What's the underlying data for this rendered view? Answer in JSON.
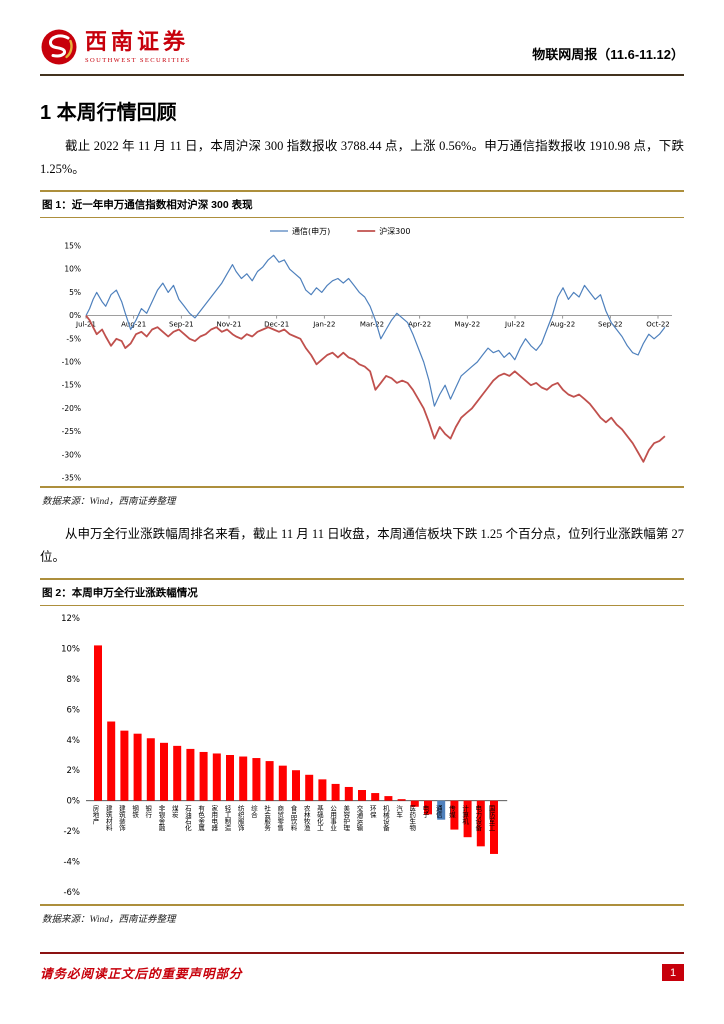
{
  "header": {
    "logo_icon": "southwest-securities-swirl-icon",
    "brand_cn": "西南证券",
    "brand_en": "SOUTHWEST SECURITIES",
    "report_title": "物联网周报（11.6-11.12）"
  },
  "section": {
    "heading": "1 本周行情回顾"
  },
  "paragraphs": {
    "p1": "截止 2022 年 11 月 11 日，本周沪深 300 指数报收 3788.44 点，上涨 0.56%。申万通信指数报收 1910.98 点，下跌 1.25%。",
    "p2": "从申万全行业涨跌幅周排名来看，截止 11 月 11 日收盘，本周通信板块下跌 1.25 个百分点，位列行业涨跌幅第 27 位。"
  },
  "figure1": {
    "title": "图 1：近一年申万通信指数相对沪深 300 表现",
    "source": "数据来源：Wind，西南证券整理"
  },
  "figure2": {
    "title": "图 2：本周申万全行业涨跌幅情况",
    "source": "数据来源：Wind，西南证券整理"
  },
  "footer": {
    "disclaimer": "请务必阅读正文后的重要声明部分",
    "page_number": "1"
  },
  "colors": {
    "brand_red": "#C7000B",
    "gold_rule": "#AD8F3C",
    "footer_rule": "#8B1212",
    "line_blue": "#4F81BD",
    "line_red": "#C0504D",
    "bar_red": "#FF0000",
    "bar_highlight_blue": "#4F81BD"
  },
  "chart_data": [
    {
      "type": "line",
      "title": "近一年申万通信指数相对沪深300表现",
      "legend_position": "top",
      "ylim": [
        -35,
        15
      ],
      "ytick_step": 5,
      "ytick_suffix": "%",
      "x_range": [
        0,
        16.4
      ],
      "x_ticks": [
        "Jul-21",
        "Aug-21",
        "Sep-21",
        "Nov-21",
        "Dec-21",
        "Jan-22",
        "Mar-22",
        "Apr-22",
        "May-22",
        "Jul-22",
        "Aug-22",
        "Sep-22",
        "Oct-22"
      ],
      "grid": false,
      "series": [
        {
          "name": "通信(申万)",
          "color": "#4F81BD",
          "width": 1.2,
          "points": [
            [
              0,
              0
            ],
            [
              0.1,
              1.5
            ],
            [
              0.2,
              3.5
            ],
            [
              0.3,
              5
            ],
            [
              0.45,
              3
            ],
            [
              0.55,
              2
            ],
            [
              0.7,
              4.5
            ],
            [
              0.85,
              5.5
            ],
            [
              1,
              3
            ],
            [
              1.1,
              0.5
            ],
            [
              1.25,
              -3
            ],
            [
              1.4,
              -1
            ],
            [
              1.55,
              1.5
            ],
            [
              1.7,
              0.5
            ],
            [
              1.85,
              3
            ],
            [
              2,
              5.5
            ],
            [
              2.15,
              7
            ],
            [
              2.3,
              5
            ],
            [
              2.45,
              6.5
            ],
            [
              2.6,
              3.5
            ],
            [
              2.75,
              2
            ],
            [
              2.9,
              0.5
            ],
            [
              3.05,
              -0.5
            ],
            [
              3.2,
              1
            ],
            [
              3.35,
              2.5
            ],
            [
              3.5,
              4
            ],
            [
              3.65,
              5.5
            ],
            [
              3.8,
              7
            ],
            [
              3.95,
              9
            ],
            [
              4.1,
              11
            ],
            [
              4.2,
              9.5
            ],
            [
              4.35,
              8
            ],
            [
              4.5,
              9
            ],
            [
              4.65,
              7.5
            ],
            [
              4.8,
              9.5
            ],
            [
              4.95,
              10.5
            ],
            [
              5.1,
              12
            ],
            [
              5.25,
              13
            ],
            [
              5.4,
              11.5
            ],
            [
              5.55,
              12
            ],
            [
              5.7,
              10
            ],
            [
              5.85,
              9
            ],
            [
              6,
              8
            ],
            [
              6.15,
              5.5
            ],
            [
              6.3,
              4.5
            ],
            [
              6.45,
              6
            ],
            [
              6.6,
              5
            ],
            [
              6.75,
              6.5
            ],
            [
              6.9,
              7.5
            ],
            [
              7.05,
              8
            ],
            [
              7.2,
              7
            ],
            [
              7.35,
              8
            ],
            [
              7.5,
              6.5
            ],
            [
              7.65,
              5
            ],
            [
              7.8,
              4
            ],
            [
              7.95,
              2
            ],
            [
              8.1,
              -1
            ],
            [
              8.25,
              -5
            ],
            [
              8.4,
              -3
            ],
            [
              8.55,
              -1
            ],
            [
              8.7,
              0.5
            ],
            [
              8.85,
              -0.5
            ],
            [
              9,
              -1.5
            ],
            [
              9.15,
              -4
            ],
            [
              9.3,
              -7
            ],
            [
              9.45,
              -10
            ],
            [
              9.6,
              -14
            ],
            [
              9.75,
              -19.5
            ],
            [
              9.9,
              -17
            ],
            [
              10.05,
              -15
            ],
            [
              10.2,
              -18
            ],
            [
              10.35,
              -15.5
            ],
            [
              10.5,
              -13
            ],
            [
              10.65,
              -12
            ],
            [
              10.8,
              -11
            ],
            [
              10.95,
              -10
            ],
            [
              11.1,
              -8.5
            ],
            [
              11.25,
              -7
            ],
            [
              11.4,
              -8
            ],
            [
              11.55,
              -7.5
            ],
            [
              11.7,
              -9
            ],
            [
              11.85,
              -8
            ],
            [
              12,
              -9.5
            ],
            [
              12.15,
              -7
            ],
            [
              12.3,
              -5
            ],
            [
              12.45,
              -6.5
            ],
            [
              12.6,
              -7.5
            ],
            [
              12.75,
              -6
            ],
            [
              12.9,
              -3
            ],
            [
              13.05,
              0
            ],
            [
              13.2,
              4
            ],
            [
              13.35,
              6
            ],
            [
              13.5,
              3.5
            ],
            [
              13.65,
              5
            ],
            [
              13.8,
              4
            ],
            [
              13.95,
              6.5
            ],
            [
              14.1,
              5
            ],
            [
              14.25,
              3.5
            ],
            [
              14.4,
              4.5
            ],
            [
              14.55,
              1
            ],
            [
              14.7,
              -1.5
            ],
            [
              14.85,
              -3
            ],
            [
              15,
              -4.5
            ],
            [
              15.15,
              -6.5
            ],
            [
              15.3,
              -8
            ],
            [
              15.45,
              -8.5
            ],
            [
              15.6,
              -6
            ],
            [
              15.75,
              -4
            ],
            [
              15.9,
              -5
            ],
            [
              16.05,
              -4
            ],
            [
              16.2,
              -2.5
            ]
          ]
        },
        {
          "name": "沪深300",
          "color": "#C0504D",
          "width": 1.8,
          "points": [
            [
              0,
              0
            ],
            [
              0.1,
              -1
            ],
            [
              0.2,
              -2.5
            ],
            [
              0.3,
              -4
            ],
            [
              0.45,
              -3
            ],
            [
              0.55,
              -4.5
            ],
            [
              0.7,
              -6.5
            ],
            [
              0.85,
              -5
            ],
            [
              1,
              -5.5
            ],
            [
              1.1,
              -7
            ],
            [
              1.25,
              -6
            ],
            [
              1.4,
              -4
            ],
            [
              1.55,
              -3.5
            ],
            [
              1.7,
              -4.5
            ],
            [
              1.85,
              -3
            ],
            [
              2,
              -2.5
            ],
            [
              2.15,
              -3.5
            ],
            [
              2.3,
              -4.5
            ],
            [
              2.45,
              -3.5
            ],
            [
              2.6,
              -3
            ],
            [
              2.75,
              -4
            ],
            [
              2.9,
              -5
            ],
            [
              3.05,
              -5.5
            ],
            [
              3.2,
              -4.5
            ],
            [
              3.35,
              -4
            ],
            [
              3.5,
              -3
            ],
            [
              3.65,
              -2.5
            ],
            [
              3.8,
              -3.5
            ],
            [
              3.95,
              -3
            ],
            [
              4.1,
              -4
            ],
            [
              4.2,
              -4.5
            ],
            [
              4.35,
              -5
            ],
            [
              4.5,
              -4
            ],
            [
              4.65,
              -4.5
            ],
            [
              4.8,
              -3.5
            ],
            [
              4.95,
              -3
            ],
            [
              5.1,
              -2.5
            ],
            [
              5.25,
              -3
            ],
            [
              5.4,
              -3.5
            ],
            [
              5.55,
              -3
            ],
            [
              5.7,
              -4
            ],
            [
              5.85,
              -4.5
            ],
            [
              6,
              -5
            ],
            [
              6.15,
              -7
            ],
            [
              6.3,
              -8.5
            ],
            [
              6.45,
              -10.5
            ],
            [
              6.6,
              -9.5
            ],
            [
              6.75,
              -8.5
            ],
            [
              6.9,
              -8
            ],
            [
              7.05,
              -9
            ],
            [
              7.2,
              -8
            ],
            [
              7.35,
              -9
            ],
            [
              7.5,
              -9.5
            ],
            [
              7.65,
              -10.5
            ],
            [
              7.8,
              -11
            ],
            [
              7.95,
              -12
            ],
            [
              8.1,
              -16
            ],
            [
              8.25,
              -14.5
            ],
            [
              8.4,
              -13
            ],
            [
              8.55,
              -13.5
            ],
            [
              8.7,
              -14.5
            ],
            [
              8.85,
              -14
            ],
            [
              9,
              -14.5
            ],
            [
              9.15,
              -16
            ],
            [
              9.3,
              -18
            ],
            [
              9.45,
              -20
            ],
            [
              9.6,
              -23
            ],
            [
              9.75,
              -26.5
            ],
            [
              9.9,
              -24
            ],
            [
              10.05,
              -25.5
            ],
            [
              10.2,
              -26.5
            ],
            [
              10.35,
              -24
            ],
            [
              10.5,
              -22
            ],
            [
              10.65,
              -21
            ],
            [
              10.8,
              -20
            ],
            [
              10.95,
              -18.5
            ],
            [
              11.1,
              -17
            ],
            [
              11.25,
              -15.5
            ],
            [
              11.4,
              -14
            ],
            [
              11.55,
              -13
            ],
            [
              11.7,
              -12.5
            ],
            [
              11.85,
              -13
            ],
            [
              12,
              -12
            ],
            [
              12.15,
              -13
            ],
            [
              12.3,
              -14
            ],
            [
              12.45,
              -15
            ],
            [
              12.6,
              -14.5
            ],
            [
              12.75,
              -15.5
            ],
            [
              12.9,
              -16
            ],
            [
              13.05,
              -15
            ],
            [
              13.2,
              -14.5
            ],
            [
              13.35,
              -16
            ],
            [
              13.5,
              -17
            ],
            [
              13.65,
              -17.5
            ],
            [
              13.8,
              -17
            ],
            [
              13.95,
              -18
            ],
            [
              14.1,
              -19
            ],
            [
              14.25,
              -20.5
            ],
            [
              14.4,
              -22
            ],
            [
              14.55,
              -23
            ],
            [
              14.7,
              -22
            ],
            [
              14.85,
              -23.5
            ],
            [
              15,
              -24.5
            ],
            [
              15.15,
              -26
            ],
            [
              15.3,
              -27.5
            ],
            [
              15.45,
              -29.5
            ],
            [
              15.6,
              -31.5
            ],
            [
              15.75,
              -29
            ],
            [
              15.9,
              -27.5
            ],
            [
              16.05,
              -27
            ],
            [
              16.2,
              -26
            ]
          ]
        }
      ]
    },
    {
      "type": "bar",
      "title": "本周申万全行业涨跌幅情况",
      "ylim": [
        -6,
        12
      ],
      "ytick_step": 2,
      "ytick_suffix": "%",
      "grid": false,
      "bar_color": "#FF0000",
      "highlight": {
        "index": 26,
        "color": "#4F81BD",
        "label": "通信"
      },
      "categories": [
        "房地产",
        "建筑材料",
        "建筑装饰",
        "钢铁",
        "银行",
        "非银金融",
        "煤炭",
        "石油石化",
        "有色金属",
        "家用电器",
        "轻工制造",
        "纺织服饰",
        "综合",
        "社会服务",
        "商贸零售",
        "食品饮料",
        "农林牧渔",
        "基础化工",
        "公用事业",
        "美容护理",
        "交通运输",
        "环保",
        "机械设备",
        "汽车",
        "医药生物",
        "电子",
        "通信",
        "传媒",
        "计算机",
        "电力设备",
        "国防军工"
      ],
      "values": [
        10.2,
        5.2,
        4.6,
        4.4,
        4.1,
        3.8,
        3.6,
        3.4,
        3.2,
        3.1,
        3.0,
        2.9,
        2.8,
        2.6,
        2.3,
        2.0,
        1.7,
        1.4,
        1.1,
        0.9,
        0.7,
        0.5,
        0.3,
        0.1,
        -0.4,
        -0.9,
        -1.25,
        -1.9,
        -2.4,
        -3.0,
        -3.5
      ]
    }
  ]
}
